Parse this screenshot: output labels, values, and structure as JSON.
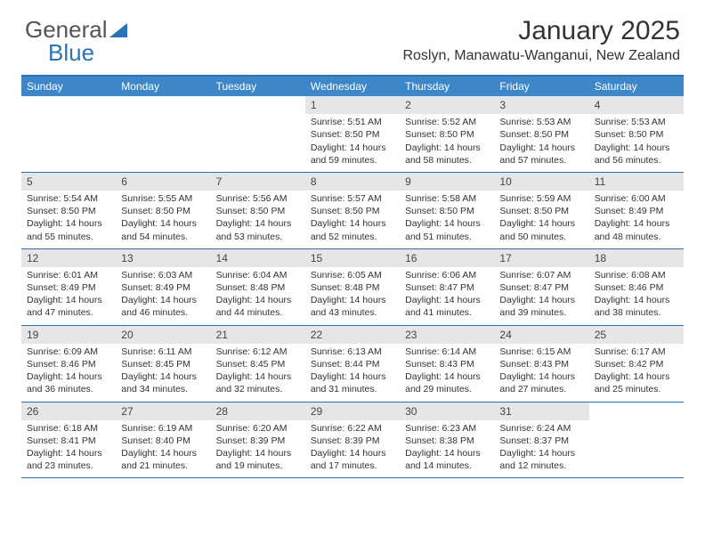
{
  "brand": {
    "part1": "General",
    "part2": "Blue"
  },
  "title": "January 2025",
  "location": "Roslyn, Manawatu-Wanganui, New Zealand",
  "colors": {
    "header_bg": "#3d87c9",
    "border": "#2a73b8",
    "daynum_bg": "#e6e6e6",
    "text": "#333333",
    "logo_gray": "#555555",
    "white": "#ffffff"
  },
  "dayNames": [
    "Sunday",
    "Monday",
    "Tuesday",
    "Wednesday",
    "Thursday",
    "Friday",
    "Saturday"
  ],
  "weeks": [
    [
      {
        "n": "",
        "sr": "",
        "ss": "",
        "dl": ""
      },
      {
        "n": "",
        "sr": "",
        "ss": "",
        "dl": ""
      },
      {
        "n": "",
        "sr": "",
        "ss": "",
        "dl": ""
      },
      {
        "n": "1",
        "sr": "Sunrise: 5:51 AM",
        "ss": "Sunset: 8:50 PM",
        "dl": "Daylight: 14 hours and 59 minutes."
      },
      {
        "n": "2",
        "sr": "Sunrise: 5:52 AM",
        "ss": "Sunset: 8:50 PM",
        "dl": "Daylight: 14 hours and 58 minutes."
      },
      {
        "n": "3",
        "sr": "Sunrise: 5:53 AM",
        "ss": "Sunset: 8:50 PM",
        "dl": "Daylight: 14 hours and 57 minutes."
      },
      {
        "n": "4",
        "sr": "Sunrise: 5:53 AM",
        "ss": "Sunset: 8:50 PM",
        "dl": "Daylight: 14 hours and 56 minutes."
      }
    ],
    [
      {
        "n": "5",
        "sr": "Sunrise: 5:54 AM",
        "ss": "Sunset: 8:50 PM",
        "dl": "Daylight: 14 hours and 55 minutes."
      },
      {
        "n": "6",
        "sr": "Sunrise: 5:55 AM",
        "ss": "Sunset: 8:50 PM",
        "dl": "Daylight: 14 hours and 54 minutes."
      },
      {
        "n": "7",
        "sr": "Sunrise: 5:56 AM",
        "ss": "Sunset: 8:50 PM",
        "dl": "Daylight: 14 hours and 53 minutes."
      },
      {
        "n": "8",
        "sr": "Sunrise: 5:57 AM",
        "ss": "Sunset: 8:50 PM",
        "dl": "Daylight: 14 hours and 52 minutes."
      },
      {
        "n": "9",
        "sr": "Sunrise: 5:58 AM",
        "ss": "Sunset: 8:50 PM",
        "dl": "Daylight: 14 hours and 51 minutes."
      },
      {
        "n": "10",
        "sr": "Sunrise: 5:59 AM",
        "ss": "Sunset: 8:50 PM",
        "dl": "Daylight: 14 hours and 50 minutes."
      },
      {
        "n": "11",
        "sr": "Sunrise: 6:00 AM",
        "ss": "Sunset: 8:49 PM",
        "dl": "Daylight: 14 hours and 48 minutes."
      }
    ],
    [
      {
        "n": "12",
        "sr": "Sunrise: 6:01 AM",
        "ss": "Sunset: 8:49 PM",
        "dl": "Daylight: 14 hours and 47 minutes."
      },
      {
        "n": "13",
        "sr": "Sunrise: 6:03 AM",
        "ss": "Sunset: 8:49 PM",
        "dl": "Daylight: 14 hours and 46 minutes."
      },
      {
        "n": "14",
        "sr": "Sunrise: 6:04 AM",
        "ss": "Sunset: 8:48 PM",
        "dl": "Daylight: 14 hours and 44 minutes."
      },
      {
        "n": "15",
        "sr": "Sunrise: 6:05 AM",
        "ss": "Sunset: 8:48 PM",
        "dl": "Daylight: 14 hours and 43 minutes."
      },
      {
        "n": "16",
        "sr": "Sunrise: 6:06 AM",
        "ss": "Sunset: 8:47 PM",
        "dl": "Daylight: 14 hours and 41 minutes."
      },
      {
        "n": "17",
        "sr": "Sunrise: 6:07 AM",
        "ss": "Sunset: 8:47 PM",
        "dl": "Daylight: 14 hours and 39 minutes."
      },
      {
        "n": "18",
        "sr": "Sunrise: 6:08 AM",
        "ss": "Sunset: 8:46 PM",
        "dl": "Daylight: 14 hours and 38 minutes."
      }
    ],
    [
      {
        "n": "19",
        "sr": "Sunrise: 6:09 AM",
        "ss": "Sunset: 8:46 PM",
        "dl": "Daylight: 14 hours and 36 minutes."
      },
      {
        "n": "20",
        "sr": "Sunrise: 6:11 AM",
        "ss": "Sunset: 8:45 PM",
        "dl": "Daylight: 14 hours and 34 minutes."
      },
      {
        "n": "21",
        "sr": "Sunrise: 6:12 AM",
        "ss": "Sunset: 8:45 PM",
        "dl": "Daylight: 14 hours and 32 minutes."
      },
      {
        "n": "22",
        "sr": "Sunrise: 6:13 AM",
        "ss": "Sunset: 8:44 PM",
        "dl": "Daylight: 14 hours and 31 minutes."
      },
      {
        "n": "23",
        "sr": "Sunrise: 6:14 AM",
        "ss": "Sunset: 8:43 PM",
        "dl": "Daylight: 14 hours and 29 minutes."
      },
      {
        "n": "24",
        "sr": "Sunrise: 6:15 AM",
        "ss": "Sunset: 8:43 PM",
        "dl": "Daylight: 14 hours and 27 minutes."
      },
      {
        "n": "25",
        "sr": "Sunrise: 6:17 AM",
        "ss": "Sunset: 8:42 PM",
        "dl": "Daylight: 14 hours and 25 minutes."
      }
    ],
    [
      {
        "n": "26",
        "sr": "Sunrise: 6:18 AM",
        "ss": "Sunset: 8:41 PM",
        "dl": "Daylight: 14 hours and 23 minutes."
      },
      {
        "n": "27",
        "sr": "Sunrise: 6:19 AM",
        "ss": "Sunset: 8:40 PM",
        "dl": "Daylight: 14 hours and 21 minutes."
      },
      {
        "n": "28",
        "sr": "Sunrise: 6:20 AM",
        "ss": "Sunset: 8:39 PM",
        "dl": "Daylight: 14 hours and 19 minutes."
      },
      {
        "n": "29",
        "sr": "Sunrise: 6:22 AM",
        "ss": "Sunset: 8:39 PM",
        "dl": "Daylight: 14 hours and 17 minutes."
      },
      {
        "n": "30",
        "sr": "Sunrise: 6:23 AM",
        "ss": "Sunset: 8:38 PM",
        "dl": "Daylight: 14 hours and 14 minutes."
      },
      {
        "n": "31",
        "sr": "Sunrise: 6:24 AM",
        "ss": "Sunset: 8:37 PM",
        "dl": "Daylight: 14 hours and 12 minutes."
      },
      {
        "n": "",
        "sr": "",
        "ss": "",
        "dl": ""
      }
    ]
  ]
}
